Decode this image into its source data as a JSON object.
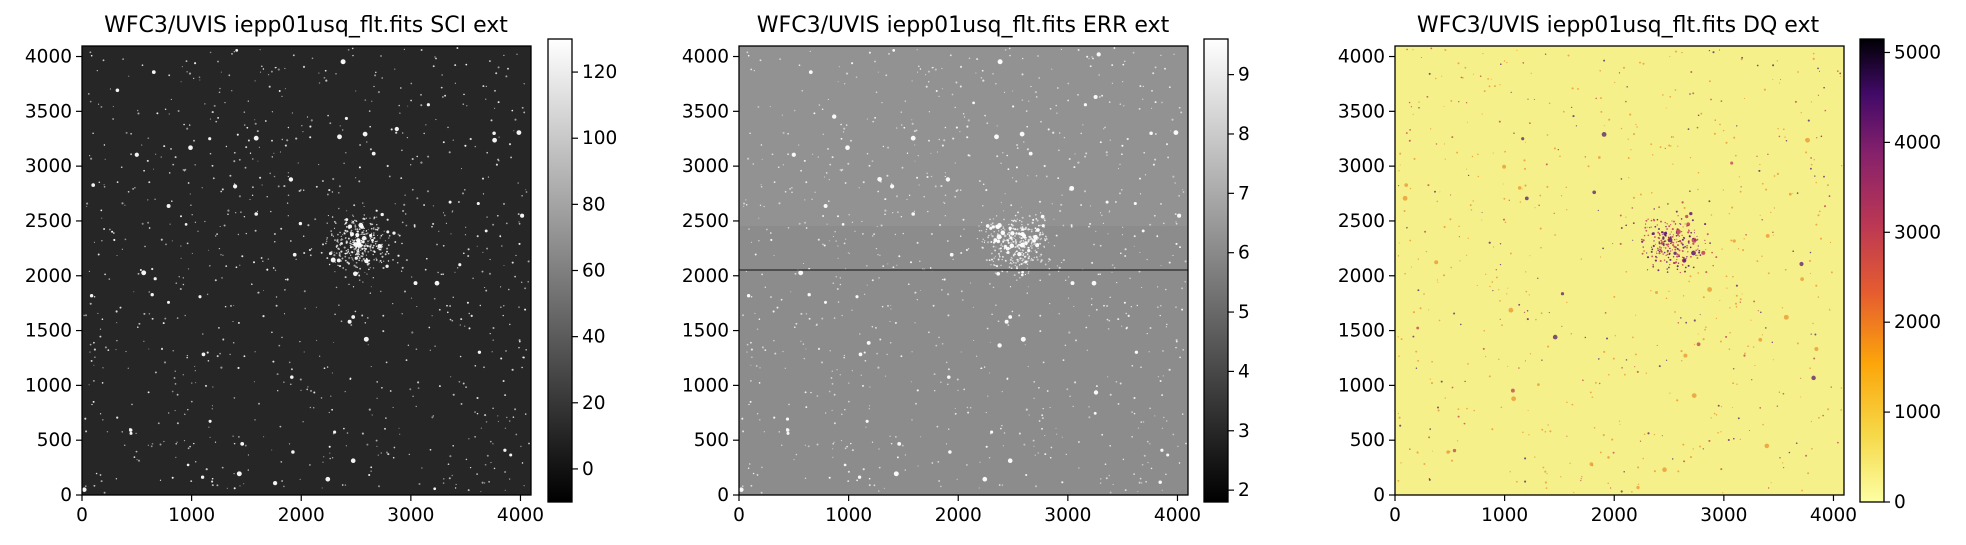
{
  "chart_data": [
    {
      "type": "heatmap",
      "title": "WFC3/UVIS iepp01usq_flt.fits SCI ext",
      "xlim": [
        0,
        4096
      ],
      "ylim": [
        0,
        4096
      ],
      "xticks": [
        0,
        1000,
        2000,
        3000,
        4000
      ],
      "yticks": [
        0,
        500,
        1000,
        1500,
        2000,
        2500,
        3000,
        3500,
        4000
      ],
      "colorbar": {
        "cmap": "gray",
        "range": [
          -10,
          130
        ],
        "ticks": [
          0,
          20,
          40,
          60,
          80,
          100,
          120
        ]
      },
      "background": "#262626",
      "features": [
        "dense star field",
        "star cluster centered near (2550, 2300)"
      ]
    },
    {
      "type": "heatmap",
      "title": "WFC3/UVIS iepp01usq_flt.fits ERR ext",
      "xlim": [
        0,
        4096
      ],
      "ylim": [
        0,
        4096
      ],
      "xticks": [
        0,
        1000,
        2000,
        3000,
        4000
      ],
      "yticks": [
        0,
        500,
        1000,
        1500,
        2000,
        2500,
        3000,
        3500,
        4000
      ],
      "colorbar": {
        "cmap": "gray",
        "range": [
          1.8,
          9.6
        ],
        "ticks": [
          2,
          3,
          4,
          5,
          6,
          7,
          8,
          9
        ]
      },
      "background": "#8c8c8c",
      "features": [
        "dense star field",
        "horizontal chip gap near y = 2050"
      ]
    },
    {
      "type": "heatmap",
      "title": "WFC3/UVIS iepp01usq_flt.fits DQ ext",
      "xlim": [
        0,
        4096
      ],
      "ylim": [
        0,
        4096
      ],
      "xticks": [
        0,
        1000,
        2000,
        3000,
        4000
      ],
      "yticks": [
        0,
        500,
        1000,
        1500,
        2000,
        2500,
        3000,
        3500,
        4000
      ],
      "colorbar": {
        "cmap": "inferno_r",
        "range": [
          0,
          5150
        ],
        "ticks": [
          0,
          1000,
          2000,
          3000,
          4000,
          5000
        ]
      },
      "background": "#f6f08a",
      "features": [
        "flagged pixels concentrated around cluster near (2550, 2300)"
      ]
    }
  ]
}
